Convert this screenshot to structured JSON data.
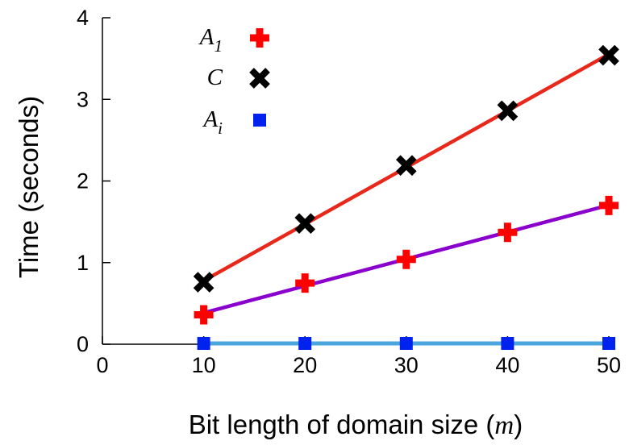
{
  "chart_data": {
    "type": "line",
    "xlabel_text": "Bit length of domain size (",
    "xlabel_var": "m",
    "xlabel_close": ")",
    "ylabel": "Time (seconds)",
    "xlim": [
      0,
      50
    ],
    "ylim": [
      0,
      4
    ],
    "xticks": [
      0,
      10,
      20,
      30,
      40,
      50
    ],
    "yticks": [
      0,
      1,
      2,
      3,
      4
    ],
    "grid": false,
    "legend_position": "top-left",
    "x": [
      10,
      20,
      30,
      40,
      50
    ],
    "series": [
      {
        "name_base": "A",
        "name_sub": "1",
        "marker": "plus",
        "color": "#ff0000",
        "values": [
          0.36,
          0.75,
          1.04,
          1.37,
          1.7
        ],
        "fit_color": "#8a00cc"
      },
      {
        "name_base": "C",
        "name_sub": "",
        "marker": "x",
        "color": "#000000",
        "values": [
          0.76,
          1.48,
          2.19,
          2.86,
          3.54
        ],
        "fit_color": "#e8281a"
      },
      {
        "name_base": "A",
        "name_sub": "i",
        "marker": "square",
        "color": "#0022ee",
        "values": [
          0.01,
          0.01,
          0.01,
          0.01,
          0.01
        ],
        "fit_color": "#4aa6dd"
      }
    ]
  }
}
